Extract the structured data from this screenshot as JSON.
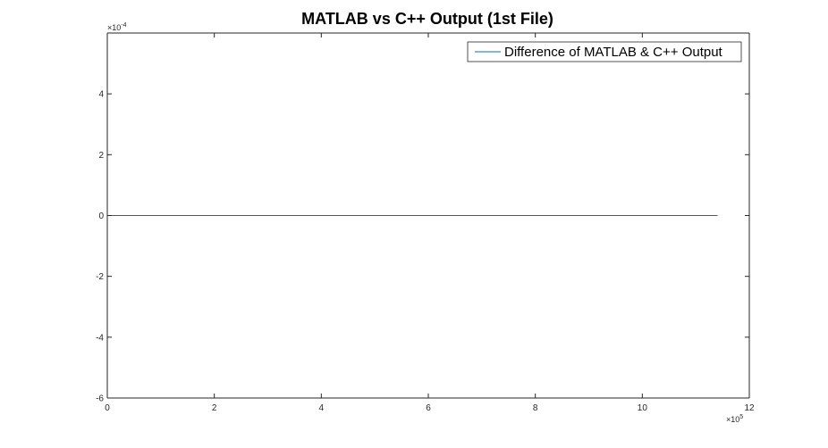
{
  "chart_data": {
    "type": "line",
    "title": "MATLAB vs C++ Output (1st File)",
    "xlabel": "",
    "ylabel": "",
    "xlim": [
      0,
      12
    ],
    "ylim": [
      -6,
      6
    ],
    "x_ticks": [
      0,
      2,
      4,
      6,
      8,
      10,
      12
    ],
    "y_ticks": [
      -6,
      -4,
      -2,
      0,
      2,
      4
    ],
    "x_ticklabels": [
      "0",
      "2",
      "4",
      "6",
      "8",
      "10",
      "12"
    ],
    "y_ticklabels": [
      "-6",
      "-4",
      "-2",
      "0",
      "2",
      "4"
    ],
    "x_exponent": {
      "base": "×10",
      "power": "5"
    },
    "y_exponent": {
      "base": "×10",
      "power": "-4"
    },
    "legend_location": "top-right",
    "grid": false,
    "series": [
      {
        "name": "Difference of MATLAB & C++ Output",
        "color": "#0072bd",
        "x": [
          0,
          1,
          2,
          3,
          4,
          5,
          6,
          7,
          8,
          9,
          10,
          11,
          11.4
        ],
        "y": [
          0,
          0,
          0,
          0,
          0,
          0,
          0,
          0,
          0,
          0,
          0,
          0,
          0
        ]
      }
    ]
  }
}
